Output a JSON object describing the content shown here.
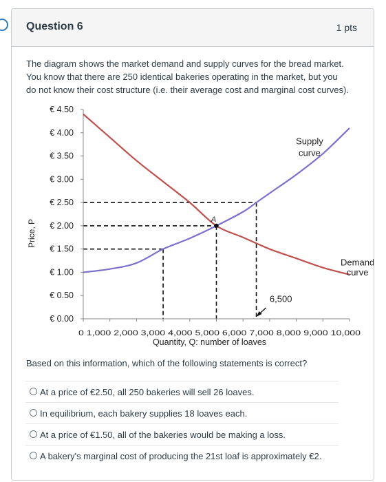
{
  "question": {
    "title": "Question 6",
    "points": "1 pts",
    "text": "The diagram shows the market demand and supply curves for the bread market. You know that there are 250 identical bakeries operating in the market, but you do not know their cost structure (i.e. their average cost and marginal cost curves).",
    "prompt": "Based on this information, which of the following statements is correct?"
  },
  "answers": [
    {
      "label": "At a price of €2.50, all 250 bakeries will sell 26 loaves."
    },
    {
      "label": "In equilibrium, each bakery supplies 18 loaves each."
    },
    {
      "label": "At a price of €1.50, all of the bakeries would be making a loss."
    },
    {
      "label": "A bakery's marginal cost of producing the 21st loaf is approximately €2."
    }
  ],
  "chart_data": {
    "type": "line",
    "xlabel": "Quantity, Q: number of loaves",
    "ylabel": "Price, P",
    "xlim": [
      0,
      10000
    ],
    "ylim": [
      0,
      4.5
    ],
    "x_ticks": [
      "0",
      "1,000",
      "2,000",
      "3,000",
      "4,000",
      "5,000",
      "6,000",
      "7,000",
      "8,000",
      "9,000",
      "10,000"
    ],
    "y_ticks": [
      "€ 0.00",
      "€ 0.50",
      "€ 1.00",
      "€ 1.50",
      "€ 2.00",
      "€ 2.50",
      "€ 3.00",
      "€ 3.50",
      "€ 4.00",
      "€ 4.50"
    ],
    "series": [
      {
        "name": "Supply curve",
        "color": "#7b6fd0",
        "x": [
          0,
          1000,
          2000,
          3000,
          4000,
          5000,
          6000,
          6500,
          7000,
          8000,
          9000,
          10000
        ],
        "y": [
          1.0,
          1.07,
          1.2,
          1.5,
          1.73,
          2.0,
          2.3,
          2.5,
          2.7,
          3.1,
          3.55,
          4.1
        ]
      },
      {
        "name": "Demand curve",
        "color": "#c0504d",
        "x": [
          0,
          1000,
          2000,
          3000,
          4000,
          5000,
          6000,
          7000,
          8000,
          9000,
          10000
        ],
        "y": [
          4.4,
          3.9,
          3.4,
          2.95,
          2.5,
          2.0,
          1.75,
          1.5,
          1.3,
          1.1,
          0.95
        ]
      }
    ],
    "guides": [
      {
        "x": 3000,
        "y": 1.5
      },
      {
        "x": 5000,
        "y": 2.0
      },
      {
        "x": 6500,
        "y": 2.5
      }
    ],
    "annotations": [
      {
        "text": "A",
        "x": 5000,
        "y": 2.0
      },
      {
        "text": "Supply",
        "x": 8500,
        "y": 3.75
      },
      {
        "text": "curve",
        "x": 8500,
        "y": 3.5
      },
      {
        "text": "Demand",
        "x": 10300,
        "y": 1.15
      },
      {
        "text": "curve",
        "x": 10300,
        "y": 0.93
      },
      {
        "text": "6,500",
        "x": 7000,
        "y": 0.36
      }
    ]
  }
}
